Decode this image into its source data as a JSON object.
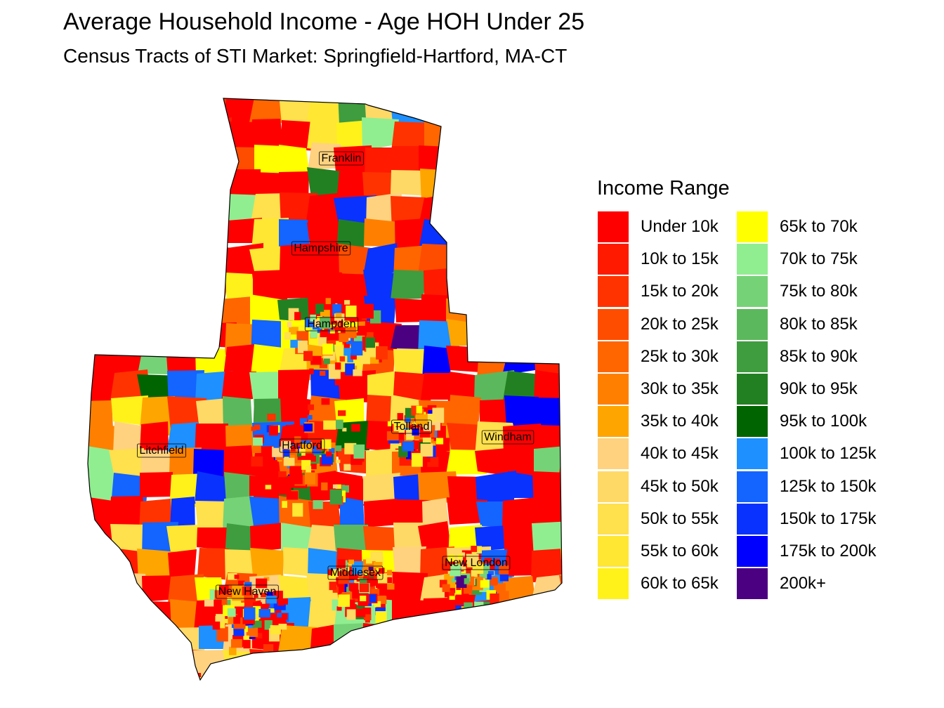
{
  "title": "Average Household Income - Age HOH Under 25",
  "subtitle": "Census Tracts of STI Market: Springfield-Hartford, MA-CT",
  "legend": {
    "title": "Income Range",
    "items": [
      {
        "label": "Under 10k",
        "color": "#FF0000"
      },
      {
        "label": "10k to 15k",
        "color": "#FF1A00"
      },
      {
        "label": "15k to 20k",
        "color": "#FF3300"
      },
      {
        "label": "20k to 25k",
        "color": "#FF4D00"
      },
      {
        "label": "25k to 30k",
        "color": "#FF6600"
      },
      {
        "label": "30k to 35k",
        "color": "#FF8000"
      },
      {
        "label": "35k to 40k",
        "color": "#FFA500"
      },
      {
        "label": "40k to 45k",
        "color": "#FFD27F"
      },
      {
        "label": "45k to 50k",
        "color": "#FFD966"
      },
      {
        "label": "50k to 55k",
        "color": "#FFE04D"
      },
      {
        "label": "55k to 60k",
        "color": "#FFE733"
      },
      {
        "label": "60k to 65k",
        "color": "#FFF21A"
      },
      {
        "label": "65k to 70k",
        "color": "#FFFF00"
      },
      {
        "label": "70k to 75k",
        "color": "#90EE90"
      },
      {
        "label": "75k to 80k",
        "color": "#76D276"
      },
      {
        "label": "80k to 85k",
        "color": "#5CB85C"
      },
      {
        "label": "85k to 90k",
        "color": "#3F9C3F"
      },
      {
        "label": "90k to 95k",
        "color": "#228022"
      },
      {
        "label": "95k to 100k",
        "color": "#006400"
      },
      {
        "label": "100k to 125k",
        "color": "#1E90FF"
      },
      {
        "label": "125k to 150k",
        "color": "#1464FF"
      },
      {
        "label": "150k to 175k",
        "color": "#0A32FF"
      },
      {
        "label": "175k to 200k",
        "color": "#0000FF"
      },
      {
        "label": "200k+",
        "color": "#4B0082"
      }
    ]
  },
  "counties": [
    {
      "name": "Franklin"
    },
    {
      "name": "Hampshire"
    },
    {
      "name": "Hampden"
    },
    {
      "name": "Tolland"
    },
    {
      "name": "Windham"
    },
    {
      "name": "Litchfield"
    },
    {
      "name": "Hartford"
    },
    {
      "name": "New London"
    },
    {
      "name": "Middlesex"
    },
    {
      "name": "New Haven"
    }
  ]
}
